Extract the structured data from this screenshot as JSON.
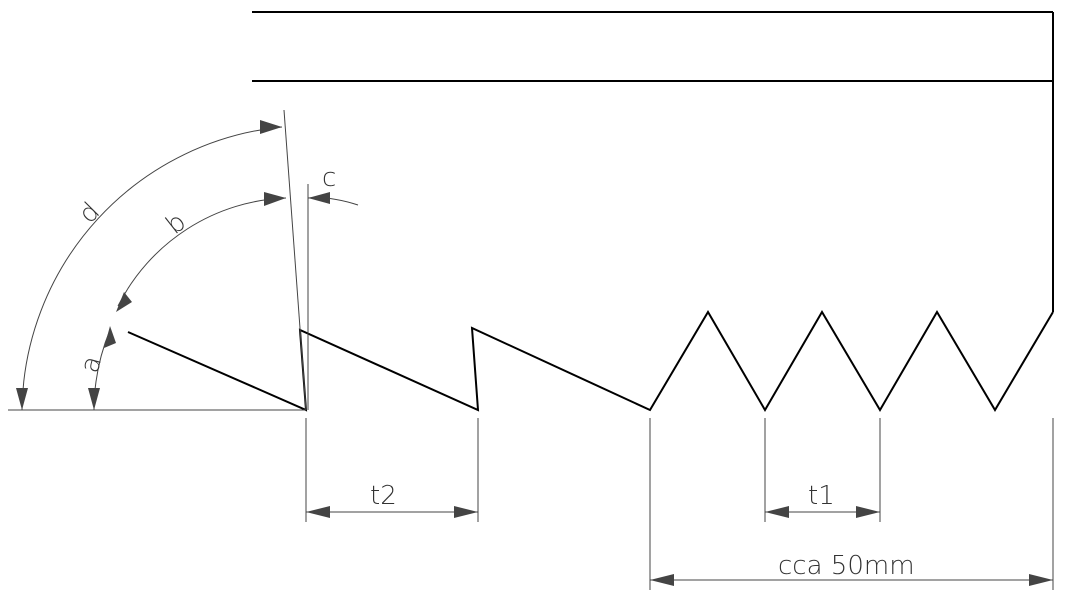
{
  "labels": {
    "angle_a": "a",
    "angle_b": "b",
    "angle_c": "c",
    "angle_d": "d",
    "pitch_t1": "t1",
    "pitch_t2": "t2",
    "overall_length": "cca 50mm"
  },
  "colors": {
    "outline": "#000000",
    "dimension": "#444444",
    "background": "#ffffff"
  }
}
